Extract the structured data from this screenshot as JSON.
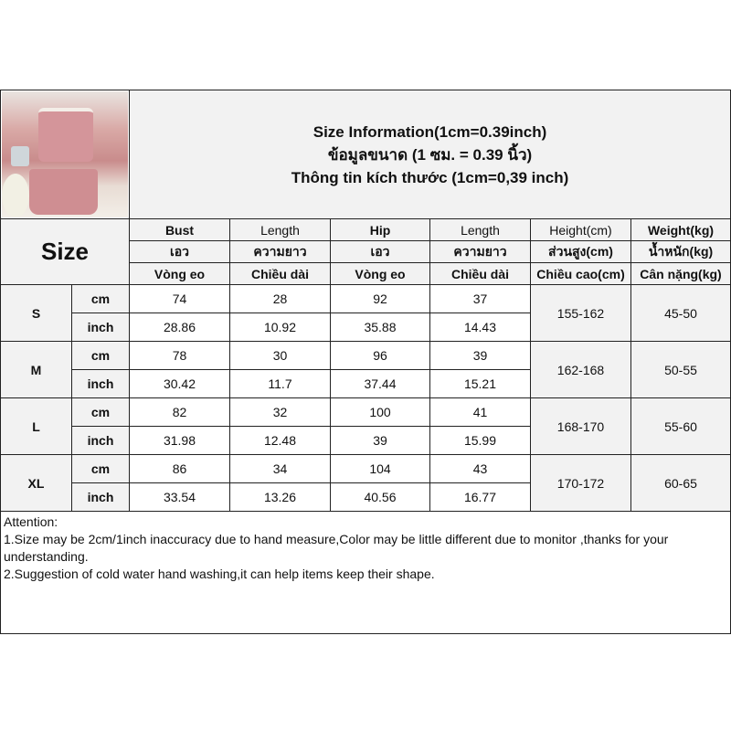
{
  "header": {
    "title_en": "Size Information(1cm=0.39inch)",
    "title_th": "ข้อมูลขนาด (1 ซม. = 0.39 นิ้ว)",
    "title_vi": "Thông tin kích thước (1cm=0,39 inch)",
    "size_label": "Size"
  },
  "columns": [
    {
      "en": "Bust",
      "th": "เอว",
      "vi": "Vòng eo"
    },
    {
      "en": "Length",
      "th": "ความยาว",
      "vi": "Chiều dài"
    },
    {
      "en": "Hip",
      "th": "เอว",
      "vi": "Vòng eo"
    },
    {
      "en": "Length",
      "th": "ความยาว",
      "vi": "Chiều dài"
    },
    {
      "en": "Height(cm)",
      "th": "ส่วนสูง(cm)",
      "vi": "Chiều cao(cm)"
    },
    {
      "en": "Weight(kg)",
      "th": "น้ำหนัก(kg)",
      "vi": "Cân nặng(kg)"
    }
  ],
  "sizes": [
    {
      "size": "S",
      "cm_label": "cm",
      "inch_label": "inch",
      "cm": [
        "74",
        "28",
        "92",
        "37"
      ],
      "inch": [
        "28.86",
        "10.92",
        "35.88",
        "14.43"
      ],
      "height": "155-162",
      "weight": "45-50"
    },
    {
      "size": "M",
      "cm_label": "cm",
      "inch_label": "inch",
      "cm": [
        "78",
        "30",
        "96",
        "39"
      ],
      "inch": [
        "30.42",
        "11.7",
        "37.44",
        "15.21"
      ],
      "height": "162-168",
      "weight": "50-55"
    },
    {
      "size": "L",
      "cm_label": "cm",
      "inch_label": "inch",
      "cm": [
        "82",
        "32",
        "100",
        "41"
      ],
      "inch": [
        "31.98",
        "12.48",
        "39",
        "15.99"
      ],
      "height": "168-170",
      "weight": "55-60"
    },
    {
      "size": "XL",
      "cm_label": "cm",
      "inch_label": "inch",
      "cm": [
        "86",
        "34",
        "104",
        "43"
      ],
      "inch": [
        "33.54",
        "13.26",
        "40.56",
        "16.77"
      ],
      "height": "170-172",
      "weight": "60-65"
    }
  ],
  "attention": {
    "heading": "Attention:",
    "line1": "1.Size may be 2cm/1inch inaccuracy due to hand measure,Color may be little different due to monitor ,thanks for your understanding.",
    "line2": "2.Suggestion of cold water hand washing,it can help items keep their shape."
  }
}
